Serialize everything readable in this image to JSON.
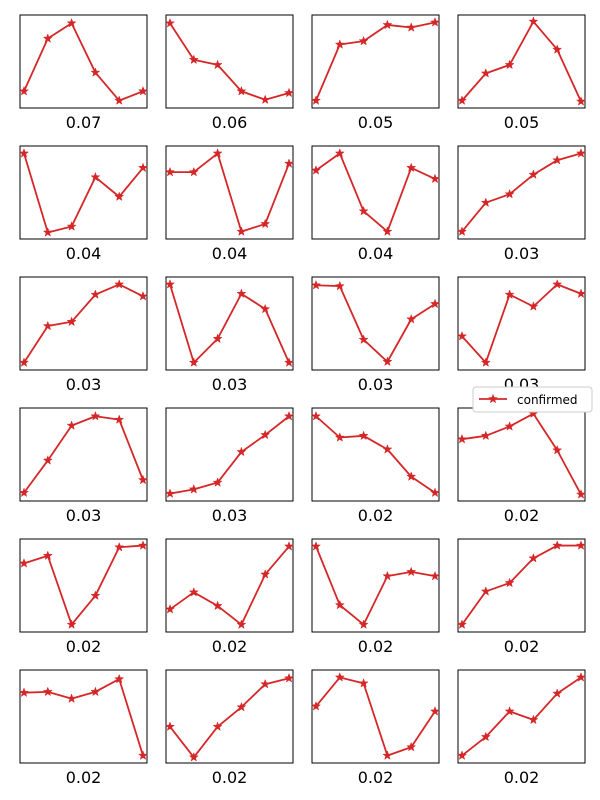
{
  "chart_data": {
    "type": "line",
    "grid": false,
    "legend": {
      "position": "right",
      "entries": [
        "confirmed"
      ]
    },
    "series_color": "#d62728",
    "series_name": "confirmed",
    "marker": "star",
    "small_multiples": [
      {
        "label": "0.07",
        "values": [
          0.15,
          0.77,
          0.95,
          0.37,
          0.04,
          0.15
        ]
      },
      {
        "label": "0.06",
        "values": [
          0.95,
          0.52,
          0.46,
          0.15,
          0.05,
          0.13
        ]
      },
      {
        "label": "0.05",
        "values": [
          0.04,
          0.7,
          0.74,
          0.93,
          0.9,
          0.96
        ]
      },
      {
        "label": "0.05",
        "values": [
          0.04,
          0.36,
          0.46,
          0.97,
          0.64,
          0.03
        ]
      },
      {
        "label": "0.04",
        "values": [
          0.96,
          0.03,
          0.1,
          0.68,
          0.45,
          0.79
        ]
      },
      {
        "label": "0.04",
        "values": [
          0.74,
          0.74,
          0.96,
          0.04,
          0.13,
          0.84
        ]
      },
      {
        "label": "0.04",
        "values": [
          0.76,
          0.96,
          0.28,
          0.04,
          0.79,
          0.66
        ]
      },
      {
        "label": "0.03",
        "values": [
          0.04,
          0.38,
          0.48,
          0.71,
          0.88,
          0.96
        ]
      },
      {
        "label": "0.03",
        "values": [
          0.04,
          0.47,
          0.52,
          0.84,
          0.96,
          0.82
        ]
      },
      {
        "label": "0.03",
        "values": [
          0.96,
          0.04,
          0.32,
          0.85,
          0.67,
          0.04
        ]
      },
      {
        "label": "0.03",
        "values": [
          0.95,
          0.94,
          0.31,
          0.05,
          0.55,
          0.73
        ]
      },
      {
        "label": "0.03",
        "values": [
          0.35,
          0.04,
          0.84,
          0.7,
          0.96,
          0.85
        ]
      },
      {
        "label": "0.03",
        "values": [
          0.05,
          0.43,
          0.84,
          0.95,
          0.91,
          0.2
        ]
      },
      {
        "label": "0.03",
        "values": [
          0.04,
          0.09,
          0.17,
          0.53,
          0.73,
          0.95
        ]
      },
      {
        "label": "0.02",
        "values": [
          0.95,
          0.7,
          0.72,
          0.56,
          0.24,
          0.05
        ]
      },
      {
        "label": "0.02",
        "values": [
          0.68,
          0.72,
          0.83,
          0.98,
          0.55,
          0.03
        ]
      },
      {
        "label": "0.02",
        "values": [
          0.76,
          0.85,
          0.04,
          0.38,
          0.95,
          0.97
        ]
      },
      {
        "label": "0.02",
        "values": [
          0.22,
          0.42,
          0.26,
          0.04,
          0.63,
          0.96
        ]
      },
      {
        "label": "0.02",
        "values": [
          0.96,
          0.27,
          0.04,
          0.61,
          0.66,
          0.61
        ]
      },
      {
        "label": "0.02",
        "values": [
          0.04,
          0.43,
          0.53,
          0.82,
          0.97,
          0.97
        ]
      },
      {
        "label": "0.02",
        "values": [
          0.78,
          0.79,
          0.71,
          0.79,
          0.94,
          0.04
        ]
      },
      {
        "label": "0.02",
        "values": [
          0.38,
          0.02,
          0.38,
          0.61,
          0.88,
          0.95
        ]
      },
      {
        "label": "0.02",
        "values": [
          0.62,
          0.96,
          0.89,
          0.04,
          0.14,
          0.56
        ]
      },
      {
        "label": "0.02",
        "values": [
          0.04,
          0.26,
          0.56,
          0.46,
          0.77,
          0.96
        ]
      }
    ]
  }
}
